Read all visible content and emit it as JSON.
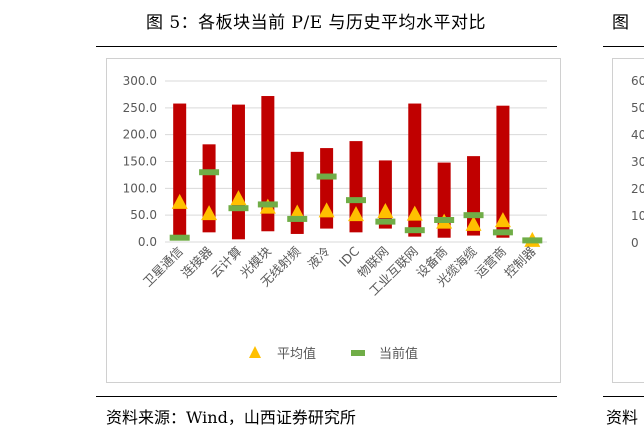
{
  "figure": {
    "title": "图 5：各板块当前 P/E 与历史平均水平对比",
    "source": "资料来源：Wind，山西证券研究所"
  },
  "right_panel": {
    "title_fragment": "图",
    "source_fragment": "资料",
    "tick_labels": [
      "60",
      "50",
      "40",
      "30",
      "20",
      "10",
      "0"
    ]
  },
  "colors": {
    "range_bar": "#c00000",
    "average_marker": "#ffc000",
    "current_marker": "#70ad47",
    "grid": "#d9d9d9",
    "tick_text": "#595959"
  },
  "chart_data": {
    "type": "bar",
    "title": "",
    "xlabel": "",
    "ylabel": "",
    "ylim": [
      0,
      300
    ],
    "yticks": [
      "0.0",
      "50.0",
      "100.0",
      "150.0",
      "200.0",
      "250.0",
      "300.0"
    ],
    "grid": true,
    "legend_position": "bottom",
    "categories": [
      "卫星通信",
      "连接器",
      "云计算",
      "光模块",
      "无线射频",
      "液冷",
      "IDC",
      "物联网",
      "工业互联网",
      "设备商",
      "光缆海缆",
      "运营商",
      "控制器"
    ],
    "range": {
      "low": [
        8,
        18,
        5,
        20,
        15,
        25,
        18,
        25,
        10,
        8,
        12,
        8,
        0
      ],
      "high": [
        258,
        182,
        256,
        272,
        168,
        175,
        188,
        152,
        258,
        148,
        160,
        254,
        0
      ]
    },
    "series": [
      {
        "name": "平均值",
        "values": [
          73,
          52,
          80,
          64,
          53,
          57,
          50,
          56,
          51,
          36,
          32,
          39,
          2
        ]
      },
      {
        "name": "当前值",
        "values": [
          8,
          130,
          63,
          70,
          43,
          122,
          78,
          38,
          22,
          41,
          50,
          18,
          3
        ]
      }
    ]
  }
}
